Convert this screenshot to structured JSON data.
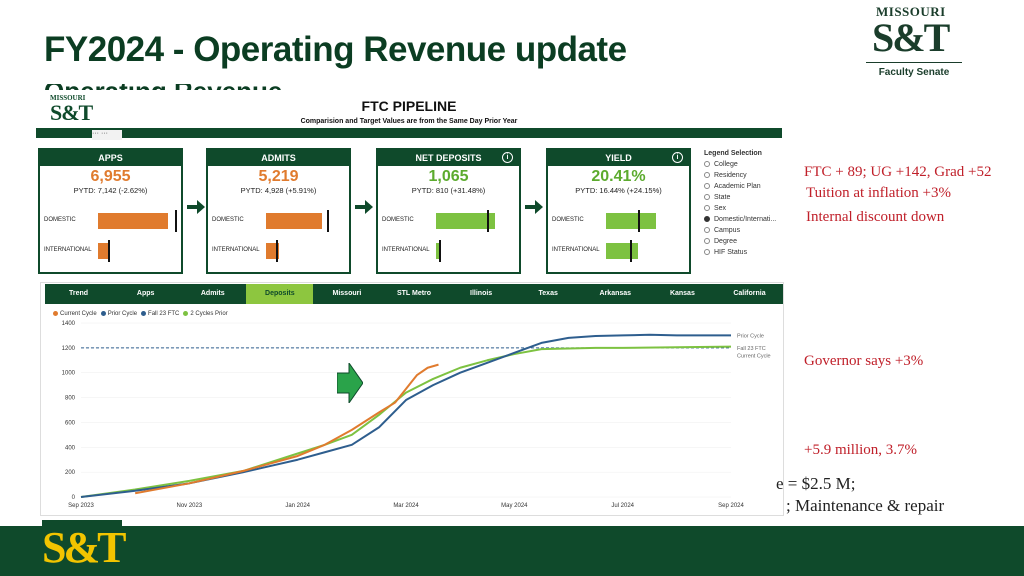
{
  "slide": {
    "title": "FY2024 - Operating Revenue update",
    "underlay_text": "Operating Revenue"
  },
  "logo_top_right": {
    "line1": "MISSOURI",
    "line2": "S&T",
    "subtitle": "Faculty Senate"
  },
  "logo_bottom_left": {
    "text": "S&T"
  },
  "notes": {
    "n1": "FTC + 89; UG +142, Grad +52",
    "n2": "Tuition at inflation +3%",
    "n3": "Internal discount down",
    "n4": "Governor says +3%",
    "n5": "+5.9 million, 3.7%",
    "n6": "e = $2.5 M;",
    "n7": "; Maintenance & repair"
  },
  "dashboard": {
    "logo_line1": "MISSOURI",
    "logo_line2": "S&T",
    "title": "FTC PIPELINE",
    "subtitle": "Comparision and Target Values are from the Same Day Prior Year",
    "ctrl_text": "··· ···",
    "cards": [
      {
        "label": "APPS",
        "value": "6,955",
        "pytd": "PYTD: 7,142 (-2.62%)",
        "value_color": "#e07b2e",
        "bar_color": "#e07b2e",
        "domestic_fill": 0.88,
        "domestic_target": 0.96,
        "intl_fill": 0.14,
        "intl_target": 0.12,
        "info": false
      },
      {
        "label": "ADMITS",
        "value": "5,219",
        "pytd": "PYTD: 4,928 (+5.91%)",
        "value_color": "#e07b2e",
        "bar_color": "#e07b2e",
        "domestic_fill": 0.7,
        "domestic_target": 0.76,
        "intl_fill": 0.16,
        "intl_target": 0.12,
        "info": false
      },
      {
        "label": "NET DEPOSITS",
        "value": "1,065",
        "pytd": "PYTD: 810 (+31.48%)",
        "value_color": "#5cab2e",
        "bar_color": "#7dc241",
        "domestic_fill": 0.74,
        "domestic_target": 0.64,
        "intl_fill": 0.06,
        "intl_target": 0.04,
        "info": true
      },
      {
        "label": "YIELD",
        "value": "20.41%",
        "pytd": "PYTD: 16.44% (+24.15%)",
        "value_color": "#5cab2e",
        "bar_color": "#7dc241",
        "domestic_fill": 0.62,
        "domestic_target": 0.4,
        "intl_fill": 0.4,
        "intl_target": 0.3,
        "info": true
      }
    ],
    "row_labels": {
      "domestic": "DOMESTIC",
      "international": "INTERNATIONAL"
    },
    "legend_selection": {
      "title": "Legend Selection",
      "options": [
        "College",
        "Residency",
        "Academic Plan",
        "State",
        "Sex",
        "Domestic/Internati...",
        "Campus",
        "Degree",
        "HIF Status"
      ],
      "selected_index": 5
    },
    "tabs": [
      "Trend",
      "Apps",
      "Admits",
      "Deposits",
      "Missouri",
      "STL Metro",
      "Illinois",
      "Texas",
      "Arkansas",
      "Kansas",
      "California"
    ],
    "active_tab": 3
  },
  "chart_data": {
    "type": "line",
    "legend": [
      "Current Cycle",
      "Prior Cycle",
      "Fall 23 FTC",
      "2 Cycles Prior"
    ],
    "colors": {
      "current": "#e07b2e",
      "prior": "#2e5e8e",
      "ftc": "#2e5e8e",
      "two_prior": "#7dc241"
    },
    "x_ticks": [
      "Sep 2023",
      "Nov 2023",
      "Jan 2024",
      "Mar 2024",
      "May 2024",
      "Jul 2024",
      "Sep 2024"
    ],
    "y_ticks": [
      0,
      200,
      400,
      600,
      800,
      1000,
      1200,
      1400
    ],
    "ylim": [
      0,
      1400
    ],
    "xlim": [
      0,
      12
    ],
    "ftc_target": 1200,
    "line_labels": [
      "Prior Cycle",
      "Fall 23 FTC",
      "Current Cycle"
    ],
    "series": [
      {
        "name": "Current Cycle",
        "x": [
          1.0,
          1.5,
          2.0,
          2.5,
          3.0,
          3.5,
          4.0,
          4.5,
          5.0,
          5.5,
          5.8,
          6.0,
          6.2,
          6.4,
          6.6
        ],
        "y": [
          30,
          70,
          110,
          160,
          210,
          270,
          330,
          420,
          540,
          680,
          760,
          870,
          980,
          1040,
          1065
        ]
      },
      {
        "name": "Prior Cycle",
        "x": [
          0,
          1,
          2,
          3,
          3.5,
          4,
          4.5,
          5,
          5.5,
          6,
          6.5,
          7,
          7.5,
          8,
          8.5,
          9,
          9.5,
          10,
          10.5,
          11,
          12
        ],
        "y": [
          0,
          50,
          110,
          200,
          250,
          300,
          360,
          420,
          560,
          780,
          900,
          1000,
          1080,
          1160,
          1240,
          1280,
          1295,
          1300,
          1305,
          1300,
          1300
        ]
      },
      {
        "name": "2 Cycles Prior",
        "x": [
          0,
          1,
          2,
          3,
          3.5,
          4,
          4.5,
          5,
          5.5,
          6,
          6.5,
          7,
          7.5,
          8,
          8.5,
          9,
          9.5,
          10,
          11,
          12
        ],
        "y": [
          0,
          60,
          130,
          210,
          280,
          350,
          420,
          500,
          660,
          840,
          950,
          1040,
          1100,
          1150,
          1190,
          1195,
          1200,
          1200,
          1205,
          1210
        ]
      }
    ]
  }
}
